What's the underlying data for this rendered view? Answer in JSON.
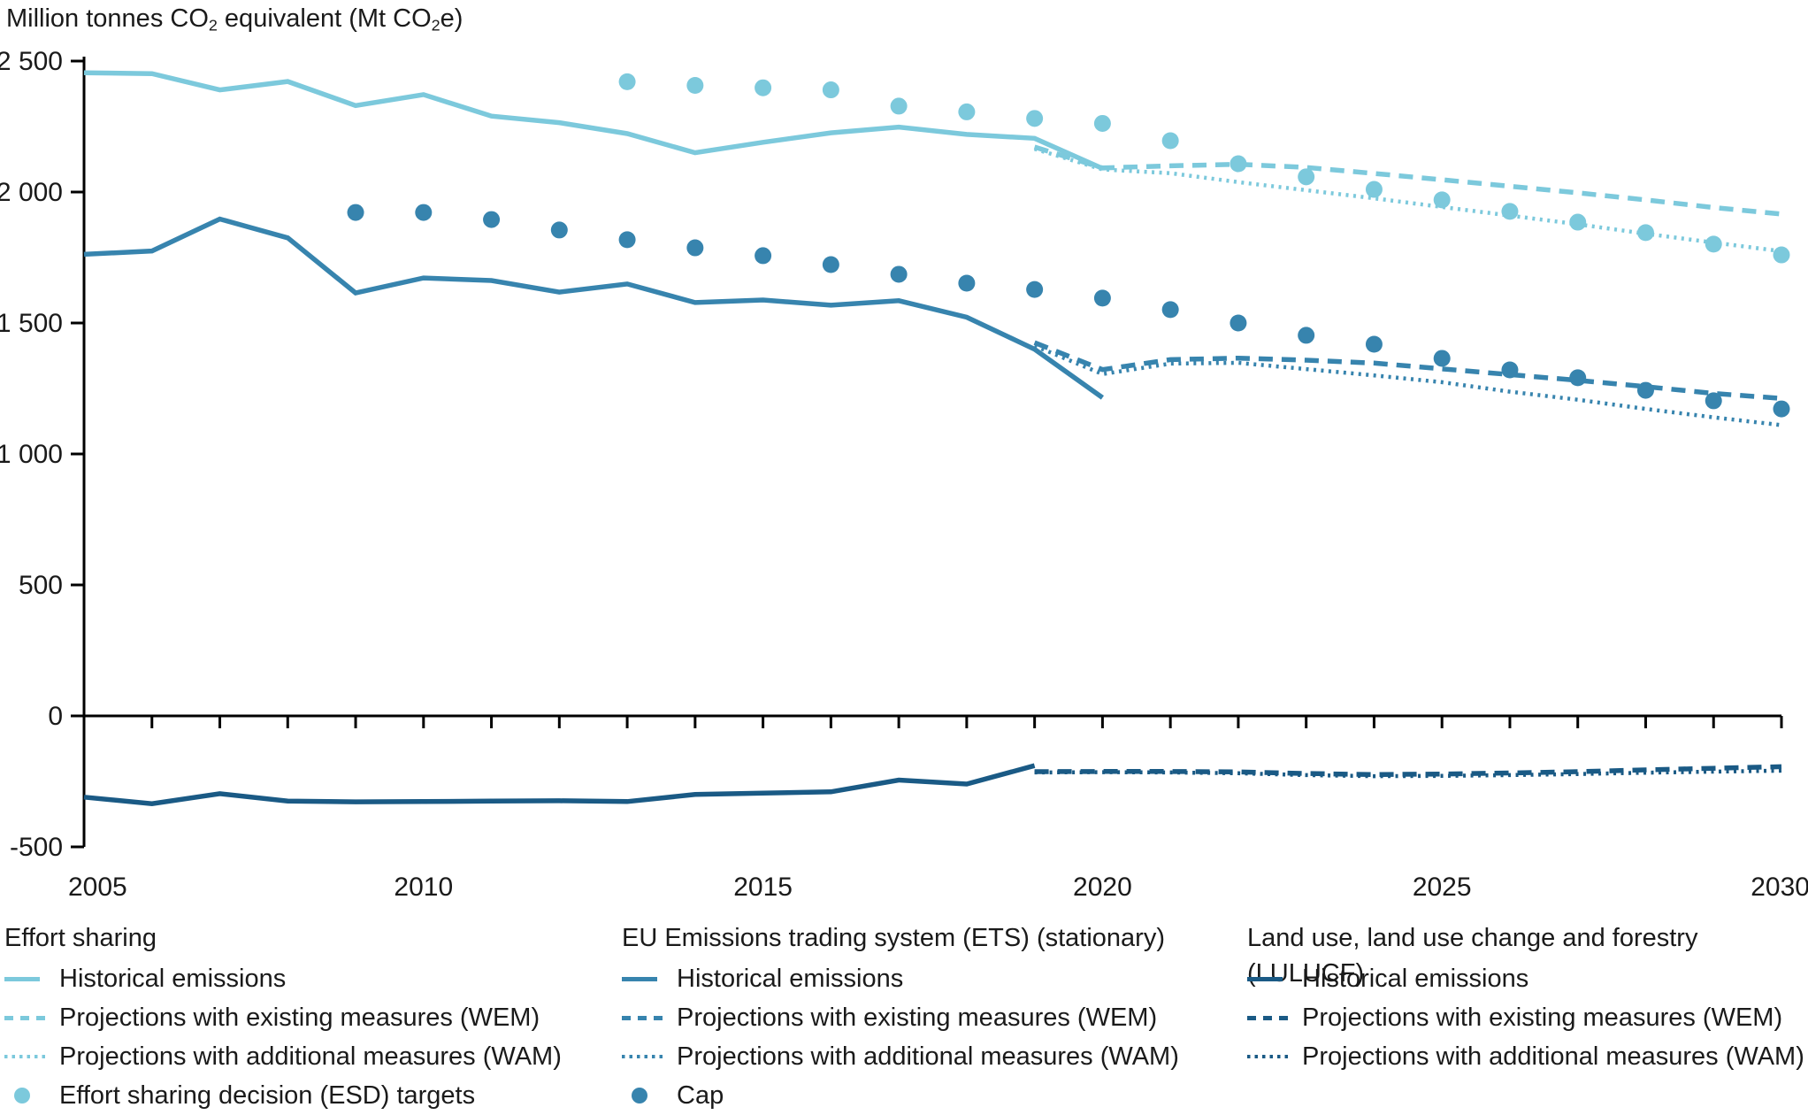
{
  "title": {
    "p1": "Million tonnes CO",
    "s1": "2",
    "p2": " equivalent (Mt CO",
    "s2": "2",
    "p3": "e)"
  },
  "colors": {
    "effort_sharing": "#7CC9DC",
    "ets": "#3784AE",
    "lulucf": "#1A5A85",
    "axis": "#000000",
    "text": "#1a1a1a"
  },
  "chart_data": {
    "type": "line",
    "title": "Million tonnes CO2 equivalent (Mt CO2e)",
    "xlabel": "",
    "ylabel": "Million tonnes CO2 equivalent (Mt CO2e)",
    "x_range": [
      2005,
      2030
    ],
    "y_range": [
      -500,
      2500
    ],
    "grid": false,
    "legend_position": "bottom",
    "y_ticks": [
      {
        "v": 2500,
        "label": "2 500"
      },
      {
        "v": 2000,
        "label": "2 000"
      },
      {
        "v": 1500,
        "label": "1 500"
      },
      {
        "v": 1000,
        "label": "1 000"
      },
      {
        "v": 500,
        "label": "500"
      },
      {
        "v": 0,
        "label": "0"
      },
      {
        "v": -500,
        "label": "-500"
      }
    ],
    "x_tick_step": 1,
    "x_label_years": [
      2005,
      2010,
      2015,
      2020,
      2025,
      2030
    ],
    "x_labels": [
      "2005",
      "2010",
      "2015",
      "2020",
      "2025",
      "2030"
    ],
    "series": [
      {
        "id": "lulucf-historical",
        "group": "Land use, land use change and forestry (LULUCF)",
        "name": "Historical emissions",
        "style": "solid",
        "color": "#1A5A85",
        "points": [
          [
            2005,
            -310
          ],
          [
            2006,
            -335
          ],
          [
            2007,
            -297
          ],
          [
            2008,
            -325
          ],
          [
            2009,
            -328
          ],
          [
            2010,
            -327
          ],
          [
            2011,
            -325
          ],
          [
            2012,
            -324
          ],
          [
            2013,
            -327
          ],
          [
            2014,
            -300
          ],
          [
            2015,
            -295
          ],
          [
            2016,
            -290
          ],
          [
            2017,
            -245
          ],
          [
            2018,
            -260
          ],
          [
            2019,
            -190
          ]
        ]
      },
      {
        "id": "lulucf-wem",
        "group": "Land use, land use change and forestry (LULUCF)",
        "name": "Projections with existing measures (WEM)",
        "style": "dashed",
        "color": "#1A5A85",
        "points": [
          [
            2019,
            -213
          ],
          [
            2020,
            -212
          ],
          [
            2021,
            -212
          ],
          [
            2022,
            -214
          ],
          [
            2023,
            -220
          ],
          [
            2024,
            -224
          ],
          [
            2025,
            -222
          ],
          [
            2026,
            -218
          ],
          [
            2027,
            -213
          ],
          [
            2028,
            -206
          ],
          [
            2029,
            -200
          ],
          [
            2030,
            -194
          ]
        ]
      },
      {
        "id": "lulucf-wam",
        "group": "Land use, land use change and forestry (LULUCF)",
        "name": "Projections with additional measures (WAM)",
        "style": "dotted",
        "color": "#1A5A85",
        "points": [
          [
            2019,
            -216
          ],
          [
            2020,
            -215
          ],
          [
            2021,
            -216
          ],
          [
            2022,
            -219
          ],
          [
            2023,
            -226
          ],
          [
            2024,
            -230
          ],
          [
            2025,
            -229
          ],
          [
            2026,
            -226
          ],
          [
            2027,
            -222
          ],
          [
            2028,
            -217
          ],
          [
            2029,
            -213
          ],
          [
            2030,
            -209
          ]
        ]
      },
      {
        "id": "ets-historical",
        "group": "EU Emissions trading system (ETS) (stationary)",
        "name": "Historical emissions",
        "style": "solid",
        "color": "#3784AE",
        "points": [
          [
            2005,
            1762
          ],
          [
            2006,
            1775
          ],
          [
            2007,
            1897
          ],
          [
            2008,
            1825
          ],
          [
            2009,
            1615
          ],
          [
            2010,
            1672
          ],
          [
            2011,
            1662
          ],
          [
            2012,
            1618
          ],
          [
            2013,
            1649
          ],
          [
            2014,
            1578
          ],
          [
            2015,
            1588
          ],
          [
            2016,
            1568
          ],
          [
            2017,
            1585
          ],
          [
            2018,
            1522
          ],
          [
            2019,
            1400
          ],
          [
            2020,
            1215
          ]
        ]
      },
      {
        "id": "ets-wem",
        "group": "EU Emissions trading system (ETS) (stationary)",
        "name": "Projections with existing measures (WEM)",
        "style": "dashed",
        "color": "#3784AE",
        "points": [
          [
            2019,
            1425
          ],
          [
            2020,
            1322
          ],
          [
            2021,
            1360
          ],
          [
            2022,
            1366
          ],
          [
            2023,
            1358
          ],
          [
            2024,
            1347
          ],
          [
            2025,
            1325
          ],
          [
            2026,
            1303
          ],
          [
            2027,
            1281
          ],
          [
            2028,
            1257
          ],
          [
            2029,
            1231
          ],
          [
            2030,
            1212
          ]
        ]
      },
      {
        "id": "ets-wam",
        "group": "EU Emissions trading system (ETS) (stationary)",
        "name": "Projections with additional measures (WAM)",
        "style": "dotted",
        "color": "#3784AE",
        "points": [
          [
            2019,
            1413
          ],
          [
            2020,
            1305
          ],
          [
            2021,
            1345
          ],
          [
            2022,
            1348
          ],
          [
            2023,
            1324
          ],
          [
            2024,
            1300
          ],
          [
            2025,
            1274
          ],
          [
            2026,
            1238
          ],
          [
            2027,
            1207
          ],
          [
            2028,
            1172
          ],
          [
            2029,
            1140
          ],
          [
            2030,
            1110
          ]
        ]
      },
      {
        "id": "ets-cap",
        "group": "EU Emissions trading system (ETS) (stationary)",
        "name": "Cap",
        "style": "dots",
        "color": "#3784AE",
        "points": [
          [
            2009,
            1922
          ],
          [
            2010,
            1922
          ],
          [
            2011,
            1895
          ],
          [
            2012,
            1855
          ],
          [
            2013,
            1818
          ],
          [
            2014,
            1787
          ],
          [
            2015,
            1757
          ],
          [
            2016,
            1723
          ],
          [
            2017,
            1686
          ],
          [
            2018,
            1652
          ],
          [
            2019,
            1628
          ],
          [
            2020,
            1595
          ],
          [
            2021,
            1551
          ],
          [
            2022,
            1500
          ],
          [
            2023,
            1453
          ],
          [
            2024,
            1419
          ],
          [
            2025,
            1365
          ],
          [
            2026,
            1321
          ],
          [
            2027,
            1291
          ],
          [
            2028,
            1243
          ],
          [
            2029,
            1203
          ],
          [
            2030,
            1172
          ]
        ]
      },
      {
        "id": "es-historical",
        "group": "Effort sharing",
        "name": "Historical emissions",
        "style": "solid",
        "color": "#7CC9DC",
        "points": [
          [
            2005,
            2455
          ],
          [
            2006,
            2452
          ],
          [
            2007,
            2390
          ],
          [
            2008,
            2422
          ],
          [
            2009,
            2330
          ],
          [
            2010,
            2372
          ],
          [
            2011,
            2290
          ],
          [
            2012,
            2265
          ],
          [
            2013,
            2223
          ],
          [
            2014,
            2150
          ],
          [
            2015,
            2190
          ],
          [
            2016,
            2226
          ],
          [
            2017,
            2248
          ],
          [
            2018,
            2220
          ],
          [
            2019,
            2205
          ],
          [
            2020,
            2090
          ]
        ]
      },
      {
        "id": "es-wem",
        "group": "Effort sharing",
        "name": "Projections with existing measures (WEM)",
        "style": "dashed",
        "color": "#7CC9DC",
        "points": [
          [
            2019,
            2172
          ],
          [
            2020,
            2092
          ],
          [
            2021,
            2100
          ],
          [
            2022,
            2106
          ],
          [
            2023,
            2094
          ],
          [
            2024,
            2071
          ],
          [
            2025,
            2047
          ],
          [
            2026,
            2022
          ],
          [
            2027,
            1997
          ],
          [
            2028,
            1970
          ],
          [
            2029,
            1941
          ],
          [
            2030,
            1916
          ]
        ]
      },
      {
        "id": "es-wam",
        "group": "Effort sharing",
        "name": "Projections with additional measures (WAM)",
        "style": "dotted",
        "color": "#7CC9DC",
        "points": [
          [
            2019,
            2165
          ],
          [
            2020,
            2086
          ],
          [
            2021,
            2072
          ],
          [
            2022,
            2038
          ],
          [
            2023,
            2007
          ],
          [
            2024,
            1976
          ],
          [
            2025,
            1943
          ],
          [
            2026,
            1910
          ],
          [
            2027,
            1877
          ],
          [
            2028,
            1841
          ],
          [
            2029,
            1807
          ],
          [
            2030,
            1774
          ]
        ]
      },
      {
        "id": "es-esd-targets",
        "group": "Effort sharing",
        "name": "Effort sharing decision (ESD) targets",
        "style": "dots",
        "color": "#7CC9DC",
        "points": [
          [
            2013,
            2421
          ],
          [
            2014,
            2407
          ],
          [
            2015,
            2398
          ],
          [
            2016,
            2390
          ],
          [
            2017,
            2328
          ],
          [
            2018,
            2306
          ],
          [
            2019,
            2281
          ],
          [
            2020,
            2262
          ],
          [
            2021,
            2196
          ],
          [
            2022,
            2108
          ],
          [
            2023,
            2058
          ],
          [
            2024,
            2010
          ],
          [
            2025,
            1970
          ],
          [
            2026,
            1926
          ],
          [
            2027,
            1885
          ],
          [
            2028,
            1845
          ],
          [
            2029,
            1801
          ],
          [
            2030,
            1760
          ]
        ]
      }
    ]
  },
  "legend": {
    "columns": [
      {
        "title": "Effort sharing",
        "color": "#7CC9DC",
        "items": [
          {
            "swatch": "solid-line",
            "label": "Historical emissions"
          },
          {
            "swatch": "dashed-line",
            "label": "Projections with existing measures (WEM)"
          },
          {
            "swatch": "dotted-line",
            "label": "Projections with additional measures (WAM)"
          },
          {
            "swatch": "dot",
            "label": "Effort sharing decision (ESD) targets"
          }
        ]
      },
      {
        "title": "EU Emissions trading system (ETS) (stationary)",
        "color": "#3784AE",
        "items": [
          {
            "swatch": "solid-line",
            "label": "Historical emissions"
          },
          {
            "swatch": "dashed-line",
            "label": "Projections with existing measures (WEM)"
          },
          {
            "swatch": "dotted-line",
            "label": "Projections with additional measures (WAM)"
          },
          {
            "swatch": "dot",
            "label": "Cap"
          }
        ]
      },
      {
        "title": "Land use, land use change and forestry (LULUCF)",
        "color": "#1A5A85",
        "items": [
          {
            "swatch": "solid-line",
            "label": "Historical emissions"
          },
          {
            "swatch": "dashed-line",
            "label": "Projections with existing measures (WEM)"
          },
          {
            "swatch": "dotted-line",
            "label": "Projections with additional measures (WAM)"
          }
        ]
      }
    ]
  }
}
